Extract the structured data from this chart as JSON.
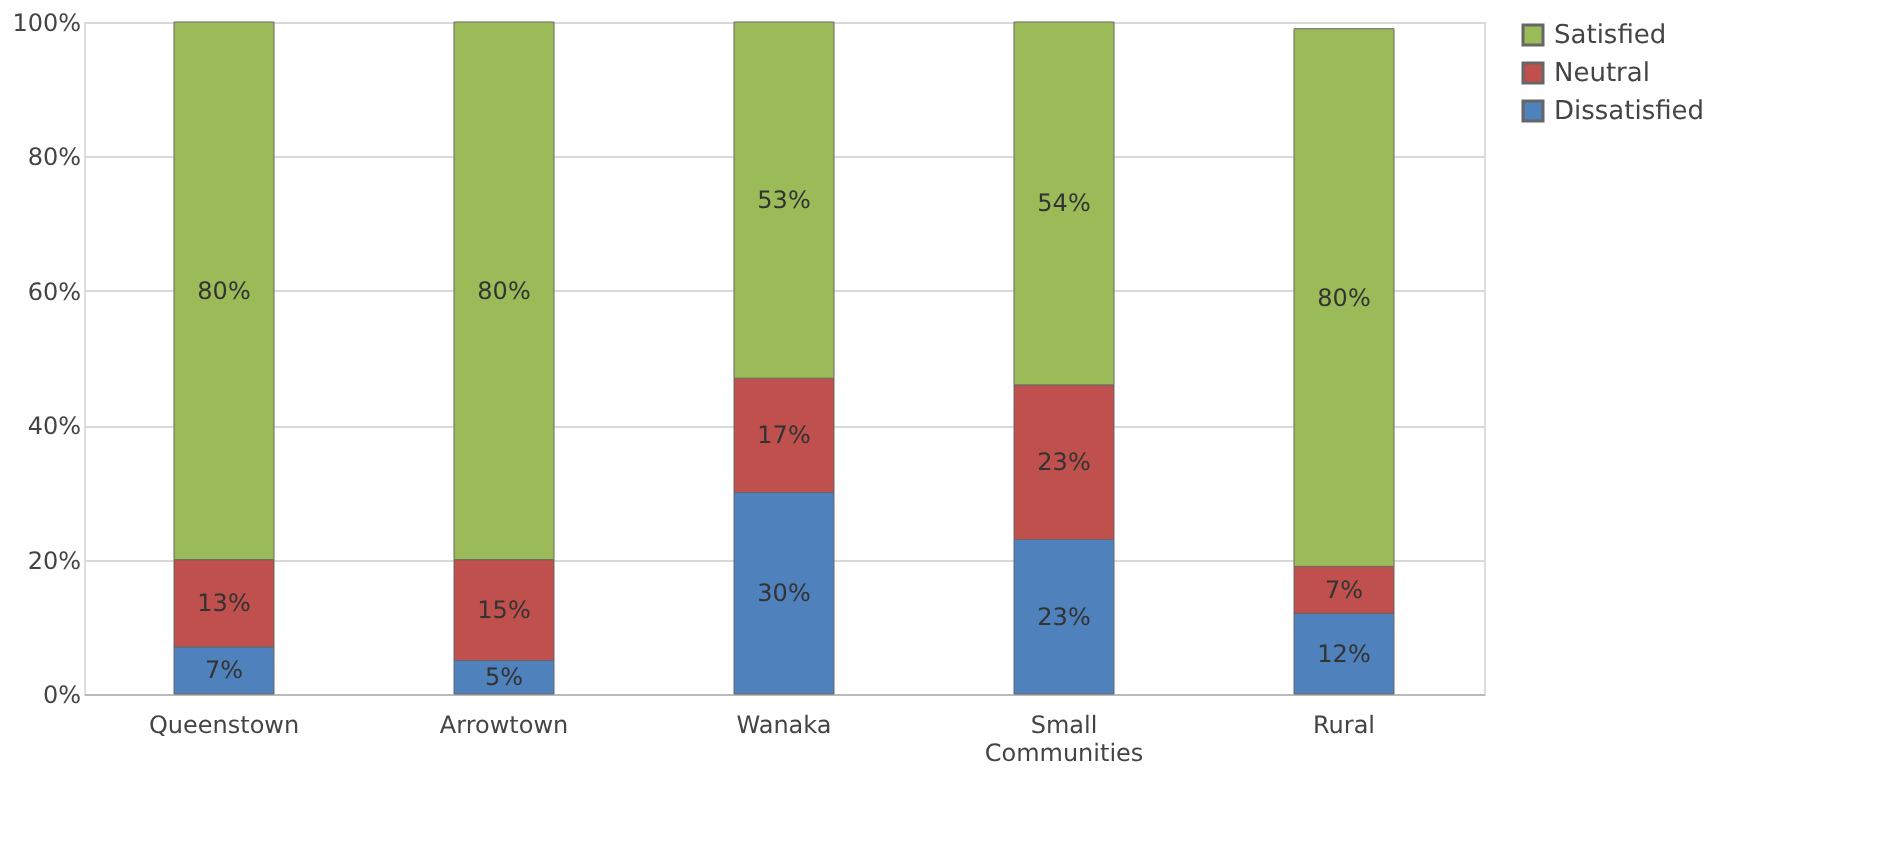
{
  "chart_data": {
    "type": "bar",
    "stacked": true,
    "categories": [
      "Queenstown",
      "Arrowtown",
      "Wanaka",
      "Small Communities",
      "Rural"
    ],
    "series": [
      {
        "name": "Dissatisfied",
        "color": "#4f81bd",
        "values": [
          7,
          5,
          30,
          23,
          12
        ],
        "value_labels": [
          "7%",
          "5%",
          "30%",
          "23%",
          "12%"
        ]
      },
      {
        "name": "Neutral",
        "color": "#c0504d",
        "values": [
          13,
          15,
          17,
          23,
          7
        ],
        "value_labels": [
          "13%",
          "15%",
          "17%",
          "23%",
          "7%"
        ]
      },
      {
        "name": "Satisfied",
        "color": "#9bbb59",
        "values": [
          80,
          80,
          53,
          54,
          80
        ],
        "value_labels": [
          "80%",
          "80%",
          "53%",
          "54%",
          "80%"
        ]
      }
    ],
    "ylim": [
      0,
      100
    ],
    "yticks": [
      {
        "value": 0,
        "label": "0%"
      },
      {
        "value": 20,
        "label": "20%"
      },
      {
        "value": 40,
        "label": "40%"
      },
      {
        "value": 60,
        "label": "60%"
      },
      {
        "value": 80,
        "label": "80%"
      },
      {
        "value": 100,
        "label": "100%"
      }
    ],
    "grid": "y",
    "legend": "right"
  }
}
